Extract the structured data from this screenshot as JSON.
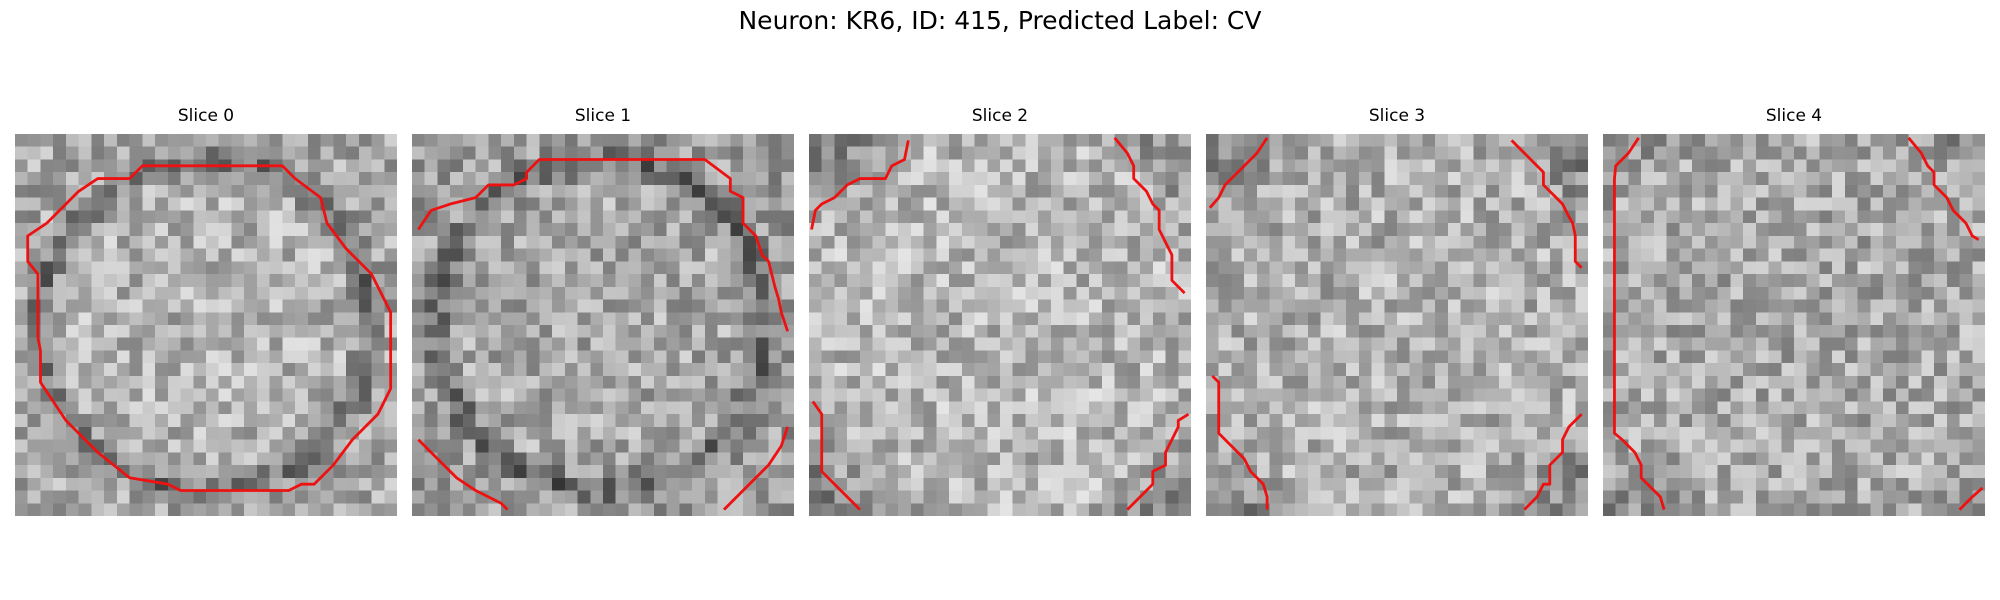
{
  "figure": {
    "title": "Neuron: KR6, ID: 415, Predicted Label: CV",
    "contour_color": "#ee1111"
  },
  "panels": [
    {
      "title": "Slice 0",
      "seed": 11,
      "base": 178,
      "edge": "ring",
      "contour": [
        [
          [
            2.5,
            7
          ],
          [
            5,
            4.5
          ],
          [
            6.5,
            3.5
          ],
          [
            9,
            3.5
          ],
          [
            10,
            2.5
          ],
          [
            21,
            2.5
          ],
          [
            22,
            3.5
          ],
          [
            24,
            5
          ],
          [
            24.5,
            7
          ],
          [
            26,
            9
          ],
          [
            28,
            11
          ],
          [
            29,
            13
          ],
          [
            29.5,
            14
          ],
          [
            29.5,
            20
          ],
          [
            29,
            21
          ],
          [
            28.5,
            22
          ],
          [
            26.5,
            24
          ],
          [
            25,
            26
          ],
          [
            23.5,
            27.5
          ],
          [
            22.5,
            27.5
          ],
          [
            21.5,
            28
          ],
          [
            13,
            28
          ],
          [
            12,
            27.5
          ],
          [
            9,
            27
          ],
          [
            6.5,
            25
          ],
          [
            4,
            22.5
          ],
          [
            3,
            21
          ],
          [
            2,
            19.5
          ],
          [
            2,
            17
          ],
          [
            1.8,
            16
          ],
          [
            1.8,
            11
          ],
          [
            1,
            10
          ],
          [
            1,
            8
          ],
          [
            2.5,
            7
          ]
        ]
      ]
    },
    {
      "title": "Slice 1",
      "seed": 23,
      "base": 168,
      "edge": "ring-open",
      "contour": [
        [
          [
            0.5,
            7.5
          ],
          [
            1.5,
            6
          ],
          [
            3,
            5.5
          ],
          [
            5,
            5
          ],
          [
            6,
            4
          ],
          [
            8,
            4
          ],
          [
            9,
            3.5
          ],
          [
            9,
            3
          ],
          [
            10,
            2
          ],
          [
            23,
            2
          ],
          [
            25,
            3.5
          ],
          [
            25,
            4.5
          ],
          [
            26,
            5
          ],
          [
            26,
            7
          ],
          [
            27,
            8
          ],
          [
            27.5,
            9.5
          ],
          [
            28,
            10
          ],
          [
            28.5,
            12
          ],
          [
            28.8,
            13
          ],
          [
            29,
            14
          ],
          [
            29.5,
            15.5
          ]
        ],
        [
          [
            0.5,
            24
          ],
          [
            2,
            25.5
          ],
          [
            3.5,
            27
          ],
          [
            5,
            28
          ],
          [
            7,
            29
          ],
          [
            7.5,
            29.5
          ]
        ],
        [
          [
            24.5,
            29.5
          ],
          [
            26,
            28
          ],
          [
            28,
            26
          ],
          [
            29,
            24.5
          ],
          [
            29.5,
            23
          ]
        ]
      ]
    },
    {
      "title": "Slice 2",
      "seed": 37,
      "base": 182,
      "edge": "corners",
      "contour": [
        [
          [
            0.2,
            7.5
          ],
          [
            0.5,
            6
          ],
          [
            1,
            5.5
          ],
          [
            2,
            5
          ],
          [
            3,
            4
          ],
          [
            4,
            3.5
          ],
          [
            6,
            3.5
          ],
          [
            6.5,
            2.5
          ],
          [
            7.5,
            2
          ],
          [
            7.8,
            0.5
          ]
        ],
        [
          [
            24,
            0.3
          ],
          [
            25,
            1.5
          ],
          [
            25.5,
            2.5
          ],
          [
            25.5,
            3.5
          ],
          [
            26.5,
            4.5
          ],
          [
            27,
            5.5
          ],
          [
            27.5,
            6
          ],
          [
            27.5,
            7.5
          ],
          [
            28,
            8.5
          ],
          [
            28.5,
            9.5
          ],
          [
            28.5,
            11.5
          ],
          [
            29.5,
            12.5
          ]
        ],
        [
          [
            0.3,
            21
          ],
          [
            1,
            22
          ],
          [
            1,
            26.5
          ],
          [
            2,
            27.5
          ],
          [
            4,
            29.5
          ]
        ],
        [
          [
            25,
            29.5
          ],
          [
            27,
            27.5
          ],
          [
            27,
            26.5
          ],
          [
            28,
            26
          ],
          [
            28,
            25
          ],
          [
            28.5,
            24
          ],
          [
            29,
            23
          ],
          [
            29,
            22.5
          ],
          [
            29.8,
            22
          ]
        ]
      ]
    },
    {
      "title": "Slice 3",
      "seed": 51,
      "base": 176,
      "edge": "corners",
      "contour": [
        [
          [
            0.3,
            5.8
          ],
          [
            1,
            5
          ],
          [
            1.5,
            4
          ],
          [
            2,
            3.5
          ],
          [
            3,
            2.5
          ],
          [
            4,
            1.5
          ],
          [
            4.8,
            0.3
          ]
        ],
        [
          [
            24,
            0.5
          ],
          [
            25,
            1.5
          ],
          [
            26,
            2.5
          ],
          [
            26.5,
            3
          ],
          [
            26.5,
            4
          ],
          [
            27.5,
            5
          ],
          [
            28,
            5.5
          ],
          [
            28.5,
            6.5
          ],
          [
            28.8,
            7
          ],
          [
            29,
            8
          ],
          [
            29,
            10
          ],
          [
            29.5,
            10.5
          ]
        ],
        [
          [
            0.5,
            19
          ],
          [
            1,
            19.5
          ],
          [
            1,
            23.5
          ],
          [
            1.5,
            24
          ],
          [
            2,
            24.5
          ],
          [
            3,
            25.5
          ],
          [
            3.5,
            26.5
          ],
          [
            4.5,
            27.5
          ],
          [
            4.8,
            28.5
          ],
          [
            4.8,
            29.5
          ]
        ],
        [
          [
            25,
            29.5
          ],
          [
            26,
            28.5
          ],
          [
            26.5,
            27.5
          ],
          [
            27,
            27.5
          ],
          [
            27,
            26
          ],
          [
            28,
            25
          ],
          [
            28,
            24
          ],
          [
            28.5,
            23
          ],
          [
            29.5,
            22
          ]
        ]
      ]
    },
    {
      "title": "Slice 4",
      "seed": 67,
      "base": 170,
      "edge": "weak",
      "contour": [
        [
          [
            2.8,
            0.3
          ],
          [
            2,
            1.5
          ],
          [
            1,
            2.5
          ],
          [
            0.9,
            3.5
          ],
          [
            0.9,
            23.5
          ],
          [
            1.5,
            24
          ],
          [
            2.5,
            25
          ],
          [
            3,
            26
          ],
          [
            3,
            27
          ],
          [
            3.5,
            27.5
          ],
          [
            4.5,
            28.5
          ],
          [
            4.8,
            29.5
          ]
        ],
        [
          [
            24,
            0.3
          ],
          [
            25,
            1.5
          ],
          [
            25.5,
            2.5
          ],
          [
            26,
            3
          ],
          [
            26,
            4
          ],
          [
            27,
            5
          ],
          [
            27.5,
            6
          ],
          [
            28,
            6.5
          ],
          [
            28.5,
            7
          ],
          [
            29,
            8
          ],
          [
            29.5,
            8.3
          ]
        ],
        [
          [
            28,
            29.5
          ],
          [
            29,
            28.5
          ],
          [
            29.8,
            27.8
          ]
        ]
      ]
    }
  ]
}
